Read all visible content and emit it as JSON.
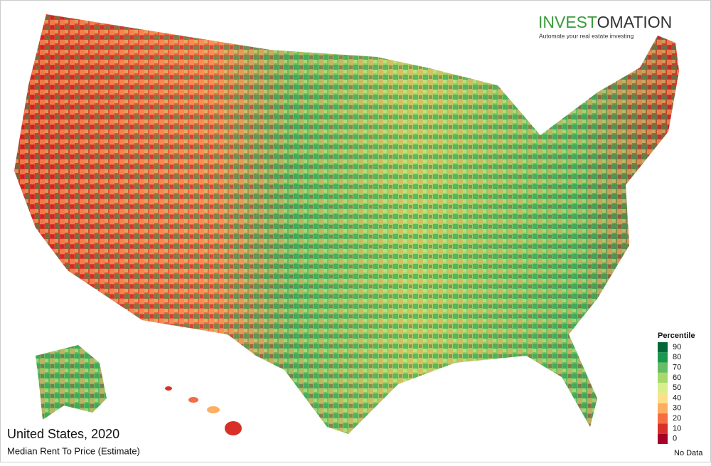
{
  "brand": {
    "name_part_1": "INVEST",
    "name_part_2": "OMATION",
    "tagline": "Automate your real estate investing"
  },
  "map": {
    "title": "United States, 2020",
    "subtitle": "Median Rent To Price (Estimate)",
    "legend": {
      "title": "Percentile",
      "items": [
        {
          "label": 90,
          "color": "#006837"
        },
        {
          "label": 80,
          "color": "#1a9850"
        },
        {
          "label": 70,
          "color": "#66bd63"
        },
        {
          "label": 60,
          "color": "#a6d96a"
        },
        {
          "label": 50,
          "color": "#d9ef8b"
        },
        {
          "label": 40,
          "color": "#fee08b"
        },
        {
          "label": 30,
          "color": "#fdae61"
        },
        {
          "label": 20,
          "color": "#f46d43"
        },
        {
          "label": 10,
          "color": "#d73027"
        },
        {
          "label": 0,
          "color": "#a50026"
        }
      ],
      "no_data": "No Data"
    }
  }
}
